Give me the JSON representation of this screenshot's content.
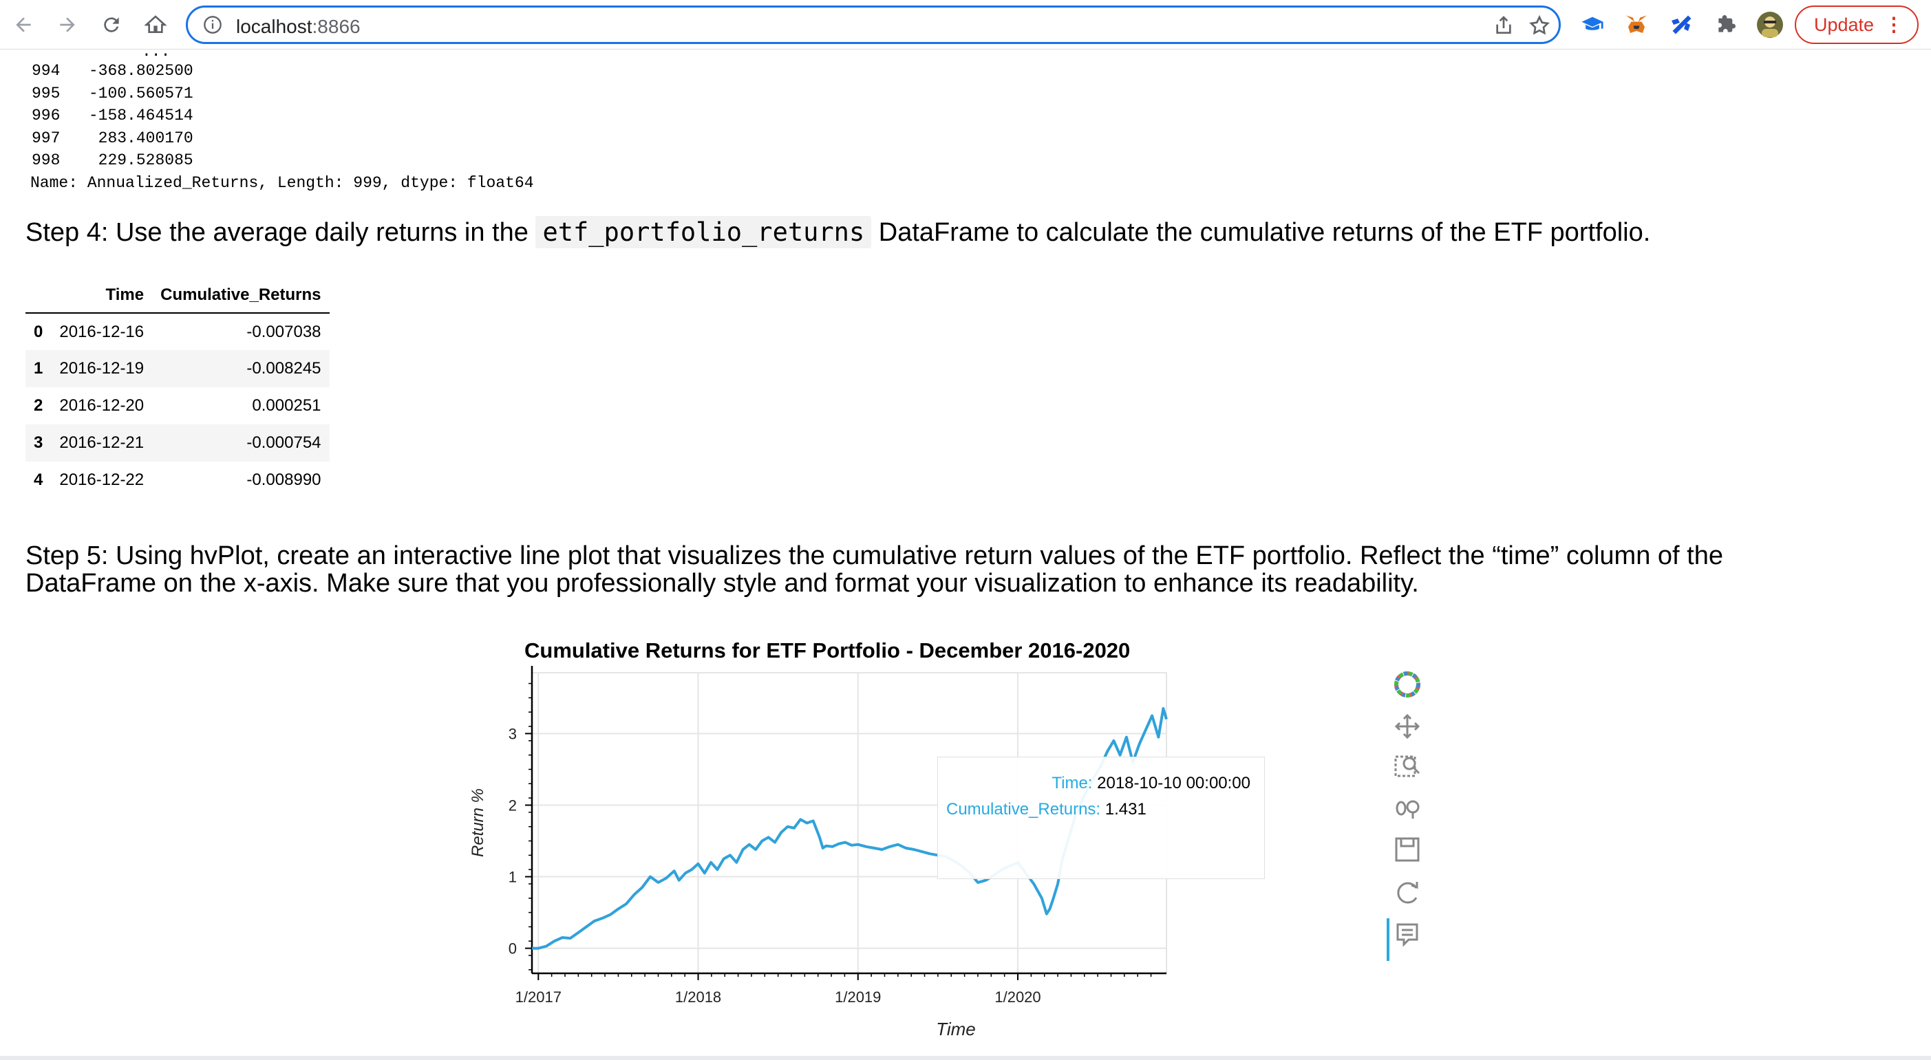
{
  "browser": {
    "url_host": "localhost",
    "url_port": ":8866",
    "update_label": "Update",
    "update_menu": "⋮"
  },
  "series_output": {
    "ellipsis": "...",
    "rows": [
      {
        "index": "994",
        "value": "-368.802500"
      },
      {
        "index": "995",
        "value": "-100.560571"
      },
      {
        "index": "996",
        "value": "-158.464514"
      },
      {
        "index": "997",
        "value": " 283.400170"
      },
      {
        "index": "998",
        "value": " 229.528085"
      }
    ],
    "footer": "Name: Annualized_Returns, Length: 999, dtype: float64"
  },
  "step4": {
    "prefix": "Step 4: Use the average daily returns in the ",
    "code": "etf_portfolio_returns",
    "suffix": " DataFrame to calculate the cumulative returns of the ETF portfolio."
  },
  "dataframe": {
    "columns": [
      "",
      "Time",
      "Cumulative_Returns"
    ],
    "rows": [
      {
        "idx": "0",
        "time": "2016-12-16",
        "value": "-0.007038"
      },
      {
        "idx": "1",
        "time": "2016-12-19",
        "value": "-0.008245"
      },
      {
        "idx": "2",
        "time": "2016-12-20",
        "value": "0.000251"
      },
      {
        "idx": "3",
        "time": "2016-12-21",
        "value": "-0.000754"
      },
      {
        "idx": "4",
        "time": "2016-12-22",
        "value": "-0.008990"
      }
    ]
  },
  "step5": {
    "line1": "Step 5: Using hvPlot, create an interactive line plot that visualizes the cumulative return values of the ETF portfolio. Reflect the “time” column of the",
    "line2": "DataFrame on the x-axis. Make sure that you professionally style and format your visualization to enhance its readability."
  },
  "tooltip": {
    "time_key": "Time:",
    "time_val": "2018-10-10 00:00:00",
    "ret_key": "Cumulative_Returns:",
    "ret_val": "1.431"
  },
  "chart_data": {
    "type": "line",
    "title": "Cumulative Returns for ETF Portfolio - December 2016-2020",
    "xlabel": "Time",
    "ylabel": "Return %",
    "x_ticks": [
      "1/2017",
      "1/2018",
      "1/2019",
      "1/2020"
    ],
    "y_ticks": [
      "0",
      "1",
      "2",
      "3"
    ],
    "ylim": [
      -0.35,
      3.85
    ],
    "xlim": [
      2016.96,
      2020.93
    ],
    "grid": true,
    "color": "#30a2da",
    "series": [
      {
        "x": [
          2016.96,
          2017.0,
          2017.05,
          2017.1,
          2017.15,
          2017.2,
          2017.25,
          2017.3,
          2017.35,
          2017.4,
          2017.45,
          2017.5,
          2017.55,
          2017.6,
          2017.65,
          2017.7,
          2017.75,
          2017.8,
          2017.85,
          2017.88,
          2017.92,
          2017.96,
          2018.0,
          2018.04,
          2018.08,
          2018.12,
          2018.16,
          2018.2,
          2018.24,
          2018.28,
          2018.32,
          2018.36,
          2018.4,
          2018.44,
          2018.48,
          2018.52,
          2018.56,
          2018.6,
          2018.64,
          2018.68,
          2018.72,
          2018.76,
          2018.78,
          2018.8,
          2018.84,
          2018.88,
          2018.92,
          2018.96,
          2019.0,
          2019.05,
          2019.1,
          2019.15,
          2019.2,
          2019.25,
          2019.3,
          2019.35,
          2019.4,
          2019.45,
          2019.5,
          2019.55,
          2019.6,
          2019.65,
          2019.7,
          2019.75,
          2019.8,
          2019.85,
          2019.9,
          2019.95,
          2020.0,
          2020.05,
          2020.1,
          2020.15,
          2020.18,
          2020.2,
          2020.22,
          2020.25,
          2020.28,
          2020.32,
          2020.36,
          2020.4,
          2020.44,
          2020.48,
          2020.52,
          2020.56,
          2020.6,
          2020.64,
          2020.68,
          2020.72,
          2020.76,
          2020.8,
          2020.84,
          2020.88,
          2020.91,
          2020.93
        ],
        "y": [
          0.0,
          0.0,
          0.03,
          0.1,
          0.15,
          0.14,
          0.22,
          0.3,
          0.38,
          0.42,
          0.47,
          0.55,
          0.62,
          0.75,
          0.85,
          1.0,
          0.92,
          0.98,
          1.08,
          0.95,
          1.05,
          1.1,
          1.18,
          1.05,
          1.2,
          1.1,
          1.25,
          1.3,
          1.2,
          1.38,
          1.45,
          1.38,
          1.5,
          1.55,
          1.48,
          1.62,
          1.7,
          1.68,
          1.8,
          1.75,
          1.78,
          1.55,
          1.4,
          1.43,
          1.42,
          1.46,
          1.48,
          1.44,
          1.45,
          1.42,
          1.4,
          1.38,
          1.42,
          1.45,
          1.4,
          1.38,
          1.35,
          1.32,
          1.3,
          1.28,
          1.22,
          1.15,
          1.05,
          0.92,
          0.95,
          1.02,
          1.1,
          1.15,
          1.2,
          1.05,
          0.9,
          0.7,
          0.48,
          0.55,
          0.68,
          0.9,
          1.25,
          1.55,
          1.85,
          2.05,
          2.25,
          2.4,
          2.55,
          2.75,
          2.9,
          2.7,
          2.95,
          2.6,
          2.85,
          3.05,
          3.25,
          2.95,
          3.35,
          3.2
        ]
      }
    ]
  }
}
